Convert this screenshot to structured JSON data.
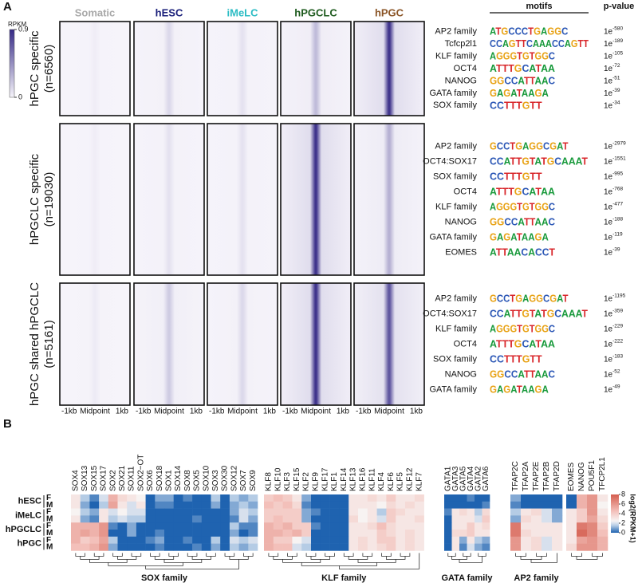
{
  "panel_a": {
    "label": "A",
    "columns": [
      {
        "name": "Somatic",
        "color": "#a9a9a9"
      },
      {
        "name": "hESC",
        "color": "#1a1f7a"
      },
      {
        "name": "iMeLC",
        "color": "#2bbcc4"
      },
      {
        "name": "hPGCLC",
        "color": "#1d5a1d"
      },
      {
        "name": "hPGC",
        "color": "#8a5426"
      }
    ],
    "colorbar": {
      "label": "RPKM",
      "ticks": [
        0.9,
        0
      ]
    },
    "x_labels": [
      "-1kb",
      "Midpoint",
      "1kb"
    ],
    "motifs_header": "motifs",
    "pvalue_header": "p-value",
    "groups": [
      {
        "label": "hPGC specific",
        "count": "(n=6560)",
        "peak_rpkm": [
          0.03,
          0.12,
          0.08,
          0.25,
          0.85
        ],
        "motifs": [
          {
            "name": "AP2 family",
            "logo": "ATGCCCTGAGGC",
            "p": {
              "base": "1e",
              "exp": "-580"
            }
          },
          {
            "name": "Tcfcp2l1",
            "logo": "CCAGTTCAAACCAGTT",
            "p": {
              "base": "1e",
              "exp": "-189"
            }
          },
          {
            "name": "KLF family",
            "logo": "AGGGTGTGGC",
            "p": {
              "base": "1e",
              "exp": "-105"
            }
          },
          {
            "name": "OCT4",
            "logo": "ATTTGCATAA",
            "p": {
              "base": "1e",
              "exp": "-72"
            }
          },
          {
            "name": "NANOG",
            "logo": "GGCCATTAAC",
            "p": {
              "base": "1e",
              "exp": "-51"
            }
          },
          {
            "name": "GATA family",
            "logo": "GAGATAAGA",
            "p": {
              "base": "1e",
              "exp": "-39"
            }
          },
          {
            "name": "SOX family",
            "logo": "CCTTTGTT",
            "p": {
              "base": "1e",
              "exp": "-34"
            }
          }
        ]
      },
      {
        "label": "hPGCLC specific",
        "count": "(n=19030)",
        "peak_rpkm": [
          0.03,
          0.08,
          0.08,
          0.85,
          0.3
        ],
        "motifs": [
          {
            "name": "AP2 family",
            "logo": "GCCTGAGGCGAT",
            "p": {
              "base": "1e",
              "exp": "-2979"
            }
          },
          {
            "name": "OCT4:SOX17",
            "logo": "CCATTGTATGCAAAT",
            "p": {
              "base": "1e",
              "exp": "-1551"
            }
          },
          {
            "name": "SOX family",
            "logo": "CCTTTGTT",
            "p": {
              "base": "1e",
              "exp": "-995"
            }
          },
          {
            "name": "OCT4",
            "logo": "ATTTGCATAA",
            "p": {
              "base": "1e",
              "exp": "-768"
            }
          },
          {
            "name": "KLF family",
            "logo": "AGGGTGTGGC",
            "p": {
              "base": "1e",
              "exp": "-477"
            }
          },
          {
            "name": "NANOG",
            "logo": "GGCCATTAAC",
            "p": {
              "base": "1e",
              "exp": "-188"
            }
          },
          {
            "name": "GATA family",
            "logo": "GAGATAAGA",
            "p": {
              "base": "1e",
              "exp": "-119"
            }
          },
          {
            "name": "EOMES",
            "logo": "ATTAACACCT",
            "p": {
              "base": "1e",
              "exp": "-39"
            }
          }
        ]
      },
      {
        "label": "hPGC shared hPGCLC",
        "count": "(n=5161)",
        "peak_rpkm": [
          0.04,
          0.18,
          0.12,
          0.85,
          0.7
        ],
        "motifs": [
          {
            "name": "AP2 family",
            "logo": "GCCTGAGGCGAT",
            "p": {
              "base": "1e",
              "exp": "-1195"
            }
          },
          {
            "name": "OCT4:SOX17",
            "logo": "CCATTGTATGCAAAT",
            "p": {
              "base": "1e",
              "exp": "-359"
            }
          },
          {
            "name": "KLF family",
            "logo": "AGGGTGTGGC",
            "p": {
              "base": "1e",
              "exp": "-229"
            }
          },
          {
            "name": "OCT4",
            "logo": "ATTTGCATAA",
            "p": {
              "base": "1e",
              "exp": "-222"
            }
          },
          {
            "name": "SOX family",
            "logo": "CCTTTGTT",
            "p": {
              "base": "1e",
              "exp": "-183"
            }
          },
          {
            "name": "NANOG",
            "logo": "GGCCATTAAC",
            "p": {
              "base": "1e",
              "exp": "-52"
            }
          },
          {
            "name": "GATA family",
            "logo": "GAGATAAGA",
            "p": {
              "base": "1e",
              "exp": "-49"
            }
          }
        ]
      }
    ]
  },
  "panel_b": {
    "label": "B",
    "legend_label": "log2(RPKM+1)",
    "legend_ticks": [
      8,
      6,
      4,
      2,
      0
    ],
    "clusters": [
      {
        "label": "SOX family",
        "genes": [
          "SOX4",
          "SOX13",
          "SOX15",
          "SOX17",
          "SOX2",
          "SOX21",
          "SOX11",
          "SOX2−OT",
          "SOX6",
          "SOX18",
          "SOX1",
          "SOX14",
          "SOX8",
          "SOX5",
          "SOX10",
          "SOX3",
          "SOX30",
          "SOX12",
          "SOX7",
          "SOX9"
        ]
      },
      {
        "label": "KLF family",
        "genes": [
          "KLF8",
          "KLF10",
          "KLF3",
          "KLF15",
          "KLF2",
          "KLF9",
          "KLF17",
          "KLF1",
          "KLF14",
          "KLF13",
          "KLF16",
          "KLF11",
          "KLF4",
          "KLF6",
          "KLF5",
          "KLF12",
          "KLF7"
        ]
      },
      {
        "label": "GATA family",
        "genes": [
          "GATA1",
          "GATA3",
          "GATA5",
          "GATA4",
          "GATA2",
          "GATA6"
        ]
      },
      {
        "label": "AP2 family",
        "genes": [
          "TFAP2C",
          "TFAP2A",
          "TFAP2E",
          "TFAP2B",
          "TFAP2D"
        ]
      },
      {
        "genes": [
          "EOMES",
          "NANOG",
          "POU5F1",
          "TFCP2L1"
        ]
      }
    ],
    "samples": [
      {
        "name": "hESC",
        "rows": [
          {
            "sex": "F",
            "values": [
              3,
              1.5,
              0.5,
              2,
              5,
              3.5,
              3,
              2.5,
              0,
              1,
              1,
              0,
              0.5,
              0,
              0,
              1.5,
              0,
              1.5,
              1,
              1.5,
              4,
              4.5,
              4,
              3,
              1,
              0,
              0,
              0,
              0,
              3,
              3,
              3.5,
              3,
              4,
              3,
              3,
              3.5,
              0,
              0,
              0,
              0.5,
              0,
              0,
              1,
              0,
              0,
              0,
              0,
              0,
              5,
              6,
              3
            ]
          },
          {
            "sex": "M",
            "values": [
              3,
              1,
              0,
              1.5,
              5.5,
              3,
              2,
              3,
              0,
              0.5,
              0.5,
              0,
              0,
              0,
              0,
              1,
              0,
              1,
              1.5,
              1,
              4.5,
              4,
              4.5,
              3.5,
              0.5,
              0,
              0,
              0,
              0,
              3,
              3,
              3,
              2.5,
              3.5,
              3,
              3.5,
              3,
              0,
              0,
              0,
              0,
              0,
              0.5,
              0.5,
              0,
              0,
              0,
              0,
              0,
              5,
              6,
              2.5
            ]
          }
        ]
      },
      {
        "name": "iMeLC",
        "rows": [
          {
            "sex": "F",
            "values": [
              2.5,
              1.5,
              1,
              3,
              2,
              2.5,
              2,
              2,
              0,
              0,
              0,
              0,
              0,
              0,
              0,
              0,
              0,
              1,
              2,
              1.5,
              4,
              4,
              4,
              4,
              1,
              0.5,
              0,
              0,
              0,
              3,
              2.5,
              3,
              1.5,
              4,
              3.5,
              3,
              3,
              0.5,
              3,
              3.5,
              3,
              1.5,
              3.5,
              1.5,
              3,
              3.5,
              2,
              1,
              3,
              4,
              6,
              3
            ]
          },
          {
            "sex": "M",
            "values": [
              3,
              1,
              0.5,
              3,
              1.5,
              2,
              1.5,
              1.5,
              0,
              0,
              0,
              0,
              0,
              0.5,
              0,
              0,
              0,
              0.5,
              2,
              1,
              4,
              4.5,
              4,
              4,
              1,
              0,
              0,
              0,
              0,
              3.5,
              2.5,
              3,
              2,
              4,
              3,
              3,
              3.5,
              0,
              3,
              3,
              3,
              2,
              4,
              1,
              3.5,
              3,
              2,
              1,
              3,
              4,
              5.5,
              3.5
            ]
          }
        ]
      },
      {
        "name": "hPGCLC",
        "rows": [
          {
            "sex": "F",
            "values": [
              5,
              5,
              5,
              6,
              0.5,
              0,
              1,
              0,
              0,
              0,
              0,
              0,
              0,
              0,
              0,
              0,
              0,
              1.5,
              0.5,
              0.5,
              5,
              4.5,
              5,
              4,
              4,
              0.5,
              0,
              0,
              0,
              3,
              3,
              3.5,
              4.5,
              3.5,
              3,
              3,
              3,
              0,
              3,
              3,
              4,
              3,
              3.5,
              7,
              3,
              3,
              3,
              3,
              3,
              7,
              6.5,
              4
            ]
          },
          {
            "sex": "M",
            "values": [
              5,
              5.5,
              5,
              6,
              0,
              0,
              1,
              0,
              0,
              0.5,
              0,
              0,
              0,
              0,
              0,
              0,
              0,
              1,
              0,
              0.5,
              5,
              5,
              4.5,
              5,
              4,
              0,
              0,
              0,
              0,
              3,
              3,
              3,
              4,
              3.5,
              3,
              3.5,
              3,
              0,
              3.5,
              3.5,
              4,
              3,
              3,
              7,
              3.5,
              3,
              3,
              3,
              3,
              7.5,
              6.5,
              4.5
            ]
          }
        ]
      },
      {
        "name": "hPGC",
        "rows": [
          {
            "sex": "F",
            "values": [
              5,
              4,
              4.5,
              5.5,
              1.5,
              0,
              0,
              0,
              0.5,
              1,
              0,
              0,
              0.5,
              0,
              0,
              1.5,
              0,
              2,
              1.5,
              2,
              5,
              4,
              4,
              2.5,
              2,
              0,
              0,
              0,
              0,
              3,
              3.5,
              3,
              4,
              4,
              3,
              3.5,
              3,
              0,
              3,
              1,
              3,
              1.5,
              1,
              6,
              3,
              3.5,
              2,
              3,
              3,
              5.5,
              6,
              5
            ]
          },
          {
            "sex": "M",
            "values": [
              4.5,
              4.5,
              5,
              6,
              1,
              0,
              0,
              0,
              0,
              0.5,
              0,
              0,
              0,
              0.5,
              0,
              1,
              0,
              1.5,
              1,
              1.5,
              5,
              4.5,
              4.5,
              2,
              1.5,
              0,
              0,
              0,
              0,
              3,
              3.5,
              3,
              3.5,
              4,
              3,
              3.5,
              3,
              0,
              3,
              0.5,
              2,
              1,
              0.5,
              6,
              3,
              3.5,
              2,
              3,
              3.5,
              6,
              6,
              5
            ]
          }
        ]
      }
    ]
  }
}
